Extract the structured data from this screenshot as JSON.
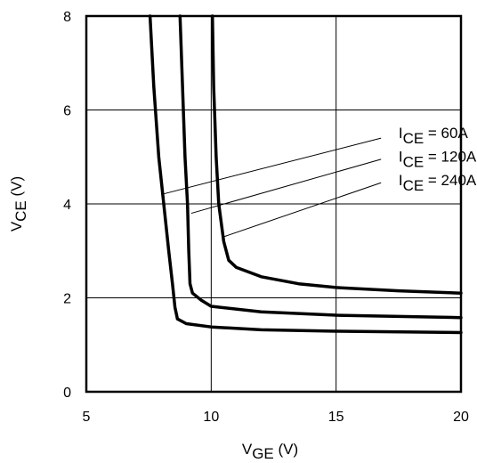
{
  "colors": {
    "line": "#000000",
    "grid": "#000000",
    "background": "#ffffff"
  },
  "chart_data": {
    "type": "line",
    "title": "",
    "xlabel": {
      "main": "V",
      "sub": "GE",
      "unit": " (V)"
    },
    "ylabel": {
      "main": "V",
      "sub": "CE",
      "unit": " (V)"
    },
    "xlim": [
      5,
      20
    ],
    "ylim": [
      0,
      8
    ],
    "xticks": [
      5,
      10,
      15,
      20
    ],
    "yticks": [
      0,
      2,
      4,
      6,
      8
    ],
    "grid": true,
    "series": [
      {
        "name": "I_CE = 60A",
        "label": {
          "main": "I",
          "sub": "CE",
          "rest": " = 60A"
        },
        "points": [
          [
            7.55,
            8.0
          ],
          [
            7.7,
            6.5
          ],
          [
            7.9,
            5.0
          ],
          [
            8.1,
            4.0
          ],
          [
            8.3,
            3.0
          ],
          [
            8.45,
            2.3
          ],
          [
            8.55,
            1.8
          ],
          [
            8.65,
            1.55
          ],
          [
            9.0,
            1.45
          ],
          [
            10.0,
            1.38
          ],
          [
            12.0,
            1.32
          ],
          [
            15.0,
            1.29
          ],
          [
            20.0,
            1.26
          ]
        ]
      },
      {
        "name": "I_CE = 120A",
        "label": {
          "main": "I",
          "sub": "CE",
          "rest": " = 120A"
        },
        "points": [
          [
            8.75,
            8.0
          ],
          [
            8.85,
            6.5
          ],
          [
            8.95,
            5.0
          ],
          [
            9.05,
            4.0
          ],
          [
            9.1,
            3.0
          ],
          [
            9.15,
            2.3
          ],
          [
            9.25,
            2.1
          ],
          [
            9.6,
            1.95
          ],
          [
            10.0,
            1.82
          ],
          [
            12.0,
            1.7
          ],
          [
            15.0,
            1.63
          ],
          [
            20.0,
            1.58
          ]
        ]
      },
      {
        "name": "I_CE = 240A",
        "label": {
          "main": "I",
          "sub": "CE",
          "rest": " = 240A"
        },
        "points": [
          [
            10.05,
            8.0
          ],
          [
            10.1,
            6.5
          ],
          [
            10.2,
            5.0
          ],
          [
            10.3,
            4.0
          ],
          [
            10.5,
            3.2
          ],
          [
            10.7,
            2.8
          ],
          [
            11.0,
            2.65
          ],
          [
            12.0,
            2.45
          ],
          [
            13.5,
            2.3
          ],
          [
            15.0,
            2.22
          ],
          [
            17.5,
            2.15
          ],
          [
            20.0,
            2.1
          ]
        ]
      }
    ],
    "annotations": [
      {
        "series": 0,
        "label_at": [
          17.5,
          5.4
        ],
        "line_from": [
          16.8,
          5.4
        ],
        "line_to": [
          8.0,
          4.2
        ]
      },
      {
        "series": 1,
        "label_at": [
          17.5,
          4.9
        ],
        "line_from": [
          16.8,
          4.95
        ],
        "line_to": [
          9.2,
          3.8
        ]
      },
      {
        "series": 2,
        "label_at": [
          17.5,
          4.4
        ],
        "line_from": [
          16.8,
          4.45
        ],
        "line_to": [
          10.5,
          3.3
        ]
      }
    ]
  }
}
